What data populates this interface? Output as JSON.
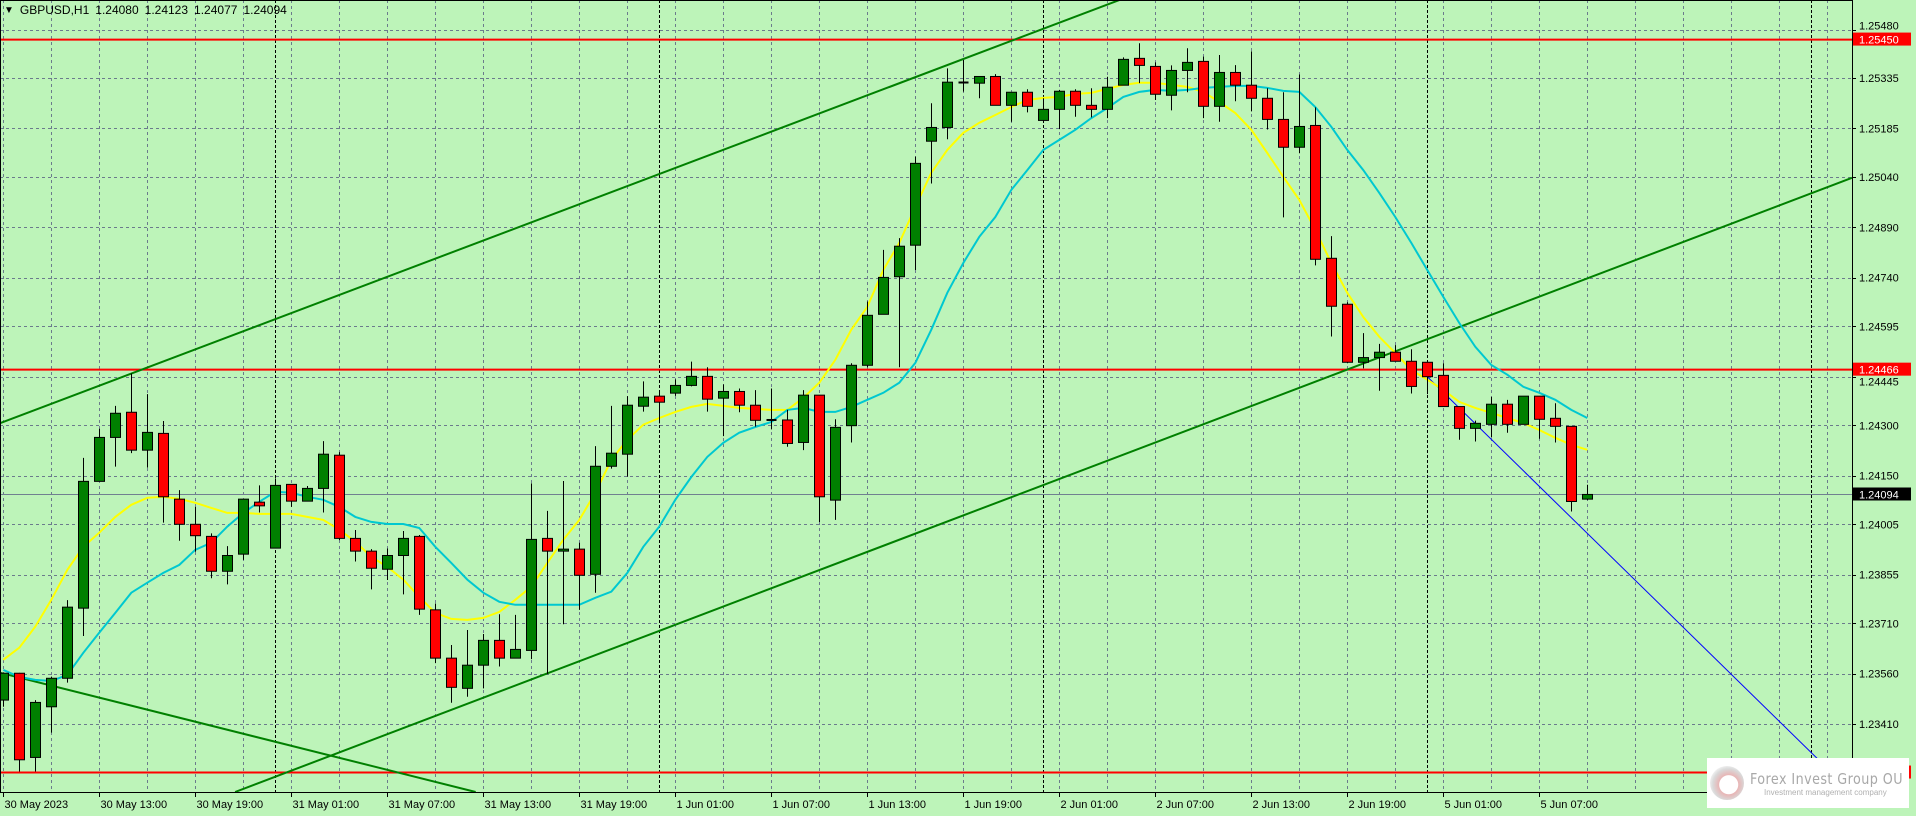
{
  "header": {
    "menu_icon": "triangle-down-icon",
    "symbol": "GBPUSD,H1",
    "open": "1.24080",
    "high": "1.24123",
    "low": "1.24077",
    "close": "1.24094"
  },
  "logo": {
    "name": "Forex Invest Group OU",
    "tagline": "Investment management company"
  },
  "colors": {
    "background": "#bdf4b9",
    "grid": "#6b7b8c",
    "bull": "#008000",
    "bear": "#ff0000",
    "ma_fast": "#ffff00",
    "ma_slow": "#00c8d0",
    "trendline": "#008000",
    "ray": "#0000ff",
    "level": "#ff0000",
    "current_price_bg": "#000000"
  },
  "chart_data": {
    "type": "candlestick",
    "symbol": "GBPUSD",
    "timeframe": "H1",
    "ylim": [
      1.2268,
      1.2559
    ],
    "grid": true,
    "price_ticks": [
      "1.25480",
      "1.25335",
      "1.25185",
      "1.25040",
      "1.24890",
      "1.24740",
      "1.24595",
      "1.24445",
      "1.24300",
      "1.24150",
      "1.24005",
      "1.23855",
      "1.23710",
      "1.23560",
      "1.23410"
    ],
    "time_ticks": [
      {
        "label": "30 May 2023",
        "at": "30 May 07:00"
      },
      {
        "label": "30 May 13:00",
        "at": "30 May 13:00"
      },
      {
        "label": "30 May 19:00",
        "at": "30 May 19:00"
      },
      {
        "label": "31 May 01:00",
        "at": "31 May 01:00"
      },
      {
        "label": "31 May 07:00",
        "at": "31 May 07:00"
      },
      {
        "label": "31 May 13:00",
        "at": "31 May 13:00"
      },
      {
        "label": "31 May 19:00",
        "at": "31 May 19:00"
      },
      {
        "label": "1 Jun 01:00",
        "at": "1 Jun 01:00"
      },
      {
        "label": "1 Jun 07:00",
        "at": "1 Jun 07:00"
      },
      {
        "label": "1 Jun 13:00",
        "at": "1 Jun 13:00"
      },
      {
        "label": "1 Jun 19:00",
        "at": "1 Jun 19:00"
      },
      {
        "label": "2 Jun 01:00",
        "at": "2 Jun 01:00"
      },
      {
        "label": "2 Jun 07:00",
        "at": "2 Jun 07:00"
      },
      {
        "label": "2 Jun 13:00",
        "at": "2 Jun 13:00"
      },
      {
        "label": "2 Jun 19:00",
        "at": "2 Jun 19:00"
      },
      {
        "label": "5 Jun 01:00",
        "at": "5 Jun 01:00"
      },
      {
        "label": "5 Jun 07:00",
        "at": "5 Jun 07:00"
      }
    ],
    "candle_fields": [
      "time",
      "open",
      "high",
      "low",
      "close"
    ],
    "candles": [
      [
        "30 May 07:00",
        1.23481,
        1.23562,
        1.23461,
        1.23561
      ],
      [
        "30 May 08:00",
        1.23561,
        1.23562,
        1.23268,
        1.23303
      ],
      [
        "30 May 09:00",
        1.2331,
        1.23481,
        1.23268,
        1.23474
      ],
      [
        "30 May 10:00",
        1.23461,
        1.23551,
        1.23384,
        1.23546
      ],
      [
        "30 May 11:00",
        1.23546,
        1.23779,
        1.23533,
        1.23758
      ],
      [
        "30 May 12:00",
        1.23755,
        1.24203,
        1.23672,
        1.24133
      ],
      [
        "30 May 13:00",
        1.24133,
        1.2429,
        1.24133,
        1.24264
      ],
      [
        "30 May 14:00",
        1.24264,
        1.24358,
        1.24177,
        1.24336
      ],
      [
        "30 May 15:00",
        1.24339,
        1.24455,
        1.24217,
        1.24226
      ],
      [
        "30 May 16:00",
        1.24226,
        1.24393,
        1.24174,
        1.24279
      ],
      [
        "30 May 17:00",
        1.24276,
        1.24313,
        1.2401,
        1.24087
      ],
      [
        "30 May 18:00",
        1.2408,
        1.24107,
        1.23956,
        1.24005
      ],
      [
        "30 May 19:00",
        1.24005,
        1.24057,
        1.23923,
        1.23971
      ],
      [
        "30 May 20:00",
        1.23969,
        1.23978,
        1.23844,
        1.23865
      ],
      [
        "30 May 21:00",
        1.23865,
        1.2394,
        1.23826,
        1.23912
      ],
      [
        "30 May 22:00",
        1.23916,
        1.2408,
        1.23899,
        1.2408
      ],
      [
        "30 May 23:00",
        1.24071,
        1.24121,
        1.2404,
        1.2406
      ],
      [
        "31 May 00:00",
        1.23934,
        1.24142,
        1.23934,
        1.24121
      ],
      [
        "31 May 01:00",
        1.24124,
        1.24124,
        1.24057,
        1.24074
      ],
      [
        "31 May 02:00",
        1.24074,
        1.24119,
        1.24074,
        1.24112
      ],
      [
        "31 May 03:00",
        1.24112,
        1.24253,
        1.2404,
        1.24214
      ],
      [
        "31 May 04:00",
        1.24211,
        1.2422,
        1.23958,
        1.23963
      ],
      [
        "31 May 05:00",
        1.23963,
        1.23988,
        1.23894,
        1.23925
      ],
      [
        "31 May 06:00",
        1.23925,
        1.23931,
        1.23811,
        1.23874
      ],
      [
        "31 May 07:00",
        1.23871,
        1.23933,
        1.23839,
        1.23912
      ],
      [
        "31 May 08:00",
        1.23912,
        1.23985,
        1.23796,
        1.23963
      ],
      [
        "31 May 09:00",
        1.23969,
        1.23973,
        1.23735,
        1.23752
      ],
      [
        "31 May 10:00",
        1.2375,
        1.23769,
        1.23591,
        1.23606
      ],
      [
        "31 May 11:00",
        1.23606,
        1.23645,
        1.23473,
        1.23519
      ],
      [
        "31 May 12:00",
        1.23516,
        1.2369,
        1.23491,
        1.23585
      ],
      [
        "31 May 13:00",
        1.23585,
        1.23678,
        1.23516,
        1.23659
      ],
      [
        "31 May 14:00",
        1.23659,
        1.23737,
        1.23581,
        1.23606
      ],
      [
        "31 May 15:00",
        1.23606,
        1.23735,
        1.23606,
        1.23632
      ],
      [
        "31 May 16:00",
        1.23629,
        1.24127,
        1.23603,
        1.2396
      ],
      [
        "31 May 17:00",
        1.23963,
        1.24045,
        1.23559,
        1.23925
      ],
      [
        "31 May 18:00",
        1.23925,
        1.24134,
        1.23707,
        1.23931
      ],
      [
        "31 May 19:00",
        1.23931,
        1.2395,
        1.2375,
        1.23853
      ],
      [
        "31 May 20:00",
        1.23856,
        1.24238,
        1.23801,
        1.24178
      ],
      [
        "31 May 21:00",
        1.24178,
        1.24358,
        1.24171,
        1.24217
      ],
      [
        "31 May 22:00",
        1.24214,
        1.24387,
        1.24147,
        1.2436
      ],
      [
        "31 May 23:00",
        1.24357,
        1.24431,
        1.24341,
        1.24384
      ],
      [
        "1 Jun 00:00",
        1.24387,
        1.24405,
        1.24306,
        1.24369
      ],
      [
        "1 Jun 01:00",
        1.24396,
        1.24437,
        1.24388,
        1.24419
      ],
      [
        "1 Jun 02:00",
        1.24419,
        1.2449,
        1.24416,
        1.24446
      ],
      [
        "1 Jun 03:00",
        1.24446,
        1.24473,
        1.24341,
        1.24378
      ],
      [
        "1 Jun 04:00",
        1.24381,
        1.24422,
        1.24268,
        1.24401
      ],
      [
        "1 Jun 05:00",
        1.24401,
        1.2441,
        1.24339,
        1.2436
      ],
      [
        "1 Jun 06:00",
        1.2436,
        1.24405,
        1.24296,
        1.24315
      ],
      [
        "1 Jun 07:00",
        1.24315,
        1.2441,
        1.24288,
        1.24316
      ],
      [
        "1 Jun 08:00",
        1.24316,
        1.24346,
        1.24236,
        1.24246
      ],
      [
        "1 Jun 09:00",
        1.24249,
        1.24405,
        1.24226,
        1.2439
      ],
      [
        "1 Jun 10:00",
        1.2439,
        1.2439,
        1.24012,
        1.24087
      ],
      [
        "1 Jun 11:00",
        1.24077,
        1.24318,
        1.24018,
        1.24294
      ],
      [
        "1 Jun 12:00",
        1.24299,
        1.24485,
        1.24249,
        1.24479
      ],
      [
        "1 Jun 13:00",
        1.24479,
        1.24669,
        1.24473,
        1.24628
      ],
      [
        "1 Jun 14:00",
        1.24631,
        1.24823,
        1.24631,
        1.24741
      ],
      [
        "1 Jun 15:00",
        1.24743,
        1.24858,
        1.24473,
        1.24834
      ],
      [
        "1 Jun 16:00",
        1.24837,
        1.25101,
        1.24763,
        1.25081
      ],
      [
        "1 Jun 17:00",
        1.25147,
        1.2526,
        1.25021,
        1.25188
      ],
      [
        "1 Jun 18:00",
        1.25188,
        1.25364,
        1.25153,
        1.25323
      ],
      [
        "1 Jun 19:00",
        1.25321,
        1.25389,
        1.25295,
        1.25322
      ],
      [
        "1 Jun 20:00",
        1.2532,
        1.2534,
        1.25275,
        1.2534
      ],
      [
        "1 Jun 21:00",
        1.2534,
        1.25347,
        1.25254,
        1.25254
      ],
      [
        "1 Jun 22:00",
        1.25254,
        1.25293,
        1.25205,
        1.25293
      ],
      [
        "1 Jun 23:00",
        1.25293,
        1.25302,
        1.25233,
        1.25251
      ],
      [
        "2 Jun 00:00",
        1.25209,
        1.25275,
        1.25209,
        1.25242
      ],
      [
        "2 Jun 01:00",
        1.25242,
        1.253,
        1.25183,
        1.25296
      ],
      [
        "2 Jun 02:00",
        1.25296,
        1.25302,
        1.2522,
        1.25254
      ],
      [
        "2 Jun 03:00",
        1.25254,
        1.25305,
        1.25218,
        1.25242
      ],
      [
        "2 Jun 04:00",
        1.25242,
        1.25339,
        1.25216,
        1.25308
      ],
      [
        "2 Jun 05:00",
        1.25314,
        1.25397,
        1.25314,
        1.25391
      ],
      [
        "2 Jun 06:00",
        1.25394,
        1.25439,
        1.2532,
        1.25373
      ],
      [
        "2 Jun 07:00",
        1.2537,
        1.25382,
        1.2527,
        1.25287
      ],
      [
        "2 Jun 08:00",
        1.25284,
        1.25373,
        1.25239,
        1.25358
      ],
      [
        "2 Jun 09:00",
        1.25358,
        1.25424,
        1.25293,
        1.25382
      ],
      [
        "2 Jun 10:00",
        1.25385,
        1.25399,
        1.25216,
        1.25251
      ],
      [
        "2 Jun 11:00",
        1.25251,
        1.25404,
        1.25205,
        1.25352
      ],
      [
        "2 Jun 12:00",
        1.25352,
        1.25374,
        1.25266,
        1.25314
      ],
      [
        "2 Jun 13:00",
        1.25314,
        1.25415,
        1.25236,
        1.25275
      ],
      [
        "2 Jun 14:00",
        1.25275,
        1.25305,
        1.25182,
        1.25212
      ],
      [
        "2 Jun 15:00",
        1.25212,
        1.25293,
        1.2492,
        1.25129
      ],
      [
        "2 Jun 16:00",
        1.25129,
        1.25346,
        1.25111,
        1.25191
      ],
      [
        "2 Jun 17:00",
        1.25194,
        1.25248,
        1.24777,
        1.24795
      ],
      [
        "2 Jun 18:00",
        1.24798,
        1.24864,
        1.24565,
        1.24655
      ],
      [
        "2 Jun 19:00",
        1.24661,
        1.24667,
        1.24485,
        1.24488
      ],
      [
        "2 Jun 20:00",
        1.24488,
        1.24575,
        1.2447,
        1.24502
      ],
      [
        "2 Jun 21:00",
        1.24502,
        1.24543,
        1.24403,
        1.24518
      ],
      [
        "2 Jun 22:00",
        1.24518,
        1.24539,
        1.24491,
        1.24491
      ],
      [
        "2 Jun 23:00",
        1.24491,
        1.24527,
        1.24395,
        1.24416
      ],
      [
        "5 Jun 00:00",
        1.24488,
        1.24488,
        1.24393,
        1.24445
      ],
      [
        "5 Jun 01:00",
        1.24449,
        1.24485,
        1.24356,
        1.24356
      ],
      [
        "5 Jun 02:00",
        1.24356,
        1.24356,
        1.24257,
        1.24291
      ],
      [
        "5 Jun 03:00",
        1.24291,
        1.24314,
        1.24252,
        1.24306
      ],
      [
        "5 Jun 04:00",
        1.24303,
        1.24385,
        1.24264,
        1.24363
      ],
      [
        "5 Jun 05:00",
        1.24363,
        1.24376,
        1.24278,
        1.24303
      ],
      [
        "5 Jun 06:00",
        1.24303,
        1.24387,
        1.24303,
        1.24387
      ],
      [
        "5 Jun 07:00",
        1.24387,
        1.24387,
        1.2426,
        1.24318
      ],
      [
        "5 Jun 08:00",
        1.24321,
        1.24366,
        1.24249,
        1.24297
      ],
      [
        "5 Jun 09:00",
        1.24297,
        1.24297,
        1.24043,
        1.24073
      ],
      [
        "5 Jun 10:00",
        1.2408,
        1.24123,
        1.24077,
        1.24094
      ]
    ],
    "ma_fast": [
      1.23601,
      1.23637,
      1.237,
      1.2378,
      1.23869,
      1.23938,
      1.2398,
      1.24027,
      1.24063,
      1.24084,
      1.24087,
      1.24081,
      1.24069,
      1.24054,
      1.24039,
      1.24039,
      1.24036,
      1.24036,
      1.24036,
      1.24027,
      1.24018,
      1.23989,
      1.23953,
      1.23908,
      1.23878,
      1.2384,
      1.23789,
      1.23741,
      1.23723,
      1.2372,
      1.23726,
      1.23744,
      1.2378,
      1.23819,
      1.2389,
      1.23959,
      1.24018,
      1.24099,
      1.24197,
      1.24257,
      1.24302,
      1.24322,
      1.2434,
      1.24355,
      1.24364,
      1.24358,
      1.24352,
      1.24349,
      1.24346,
      1.24346,
      1.24382,
      1.24427,
      1.24495,
      1.24585,
      1.24653,
      1.24763,
      1.24844,
      1.24951,
      1.25053,
      1.25121,
      1.25172,
      1.25202,
      1.25225,
      1.25249,
      1.2527,
      1.25276,
      1.25279,
      1.25288,
      1.25291,
      1.25303,
      1.25315,
      1.25321,
      1.25321,
      1.25315,
      1.25309,
      1.25294,
      1.25264,
      1.25231,
      1.25181,
      1.25112,
      1.25041,
      1.24972,
      1.24883,
      1.24784,
      1.24695,
      1.24623,
      1.24564,
      1.24516,
      1.24465,
      1.24436,
      1.24406,
      1.2437,
      1.24352,
      1.24337,
      1.24322,
      1.24307,
      1.24286,
      1.24263,
      1.24242,
      1.24227
    ],
    "ma_slow": [
      1.23571,
      1.2355,
      1.23541,
      1.23538,
      1.23556,
      1.23622,
      1.23682,
      1.23741,
      1.23801,
      1.23831,
      1.2386,
      1.23884,
      1.23929,
      1.2395,
      1.23998,
      1.24039,
      1.24072,
      1.24102,
      1.24099,
      1.24087,
      1.24078,
      1.24057,
      1.24027,
      1.24012,
      1.24006,
      1.24006,
      1.23994,
      1.23938,
      1.2389,
      1.2384,
      1.23801,
      1.23774,
      1.23765,
      1.23765,
      1.23765,
      1.23765,
      1.23765,
      1.23786,
      1.23804,
      1.2386,
      1.23938,
      1.23998,
      1.24078,
      1.24146,
      1.24206,
      1.24248,
      1.24278,
      1.24295,
      1.2431,
      1.24346,
      1.24352,
      1.2434,
      1.2434,
      1.24355,
      1.24376,
      1.24397,
      1.24427,
      1.24486,
      1.24585,
      1.24695,
      1.24784,
      1.24862,
      1.24921,
      1.25002,
      1.25061,
      1.25121,
      1.25151,
      1.25181,
      1.25216,
      1.25246,
      1.25279,
      1.25294,
      1.253,
      1.25297,
      1.253,
      1.25306,
      1.25309,
      1.25312,
      1.25312,
      1.25306,
      1.25297,
      1.25294,
      1.25249,
      1.2519,
      1.25121,
      1.25061,
      1.24993,
      1.24921,
      1.24844,
      1.24763,
      1.24683,
      1.24605,
      1.24534,
      1.2448,
      1.24451,
      1.24415,
      1.24397,
      1.24376,
      1.24346,
      1.24322
    ],
    "horizontal_levels": [
      {
        "price": "1.25450",
        "labeled": true
      },
      {
        "price": "1.24466",
        "labeled": true
      },
      {
        "price": "1.23265",
        "labeled": false
      }
    ],
    "current_price": "1.24094",
    "trendlines": [
      {
        "kind": "channel-upper",
        "color": "#008000",
        "p1": [
          "30 May 07:00",
          1.2431
        ],
        "p2": [
          "1 Jun 19:00",
          1.25392
        ],
        "extend": "both"
      },
      {
        "kind": "channel-lower",
        "color": "#008000",
        "p1": [
          "31 May 13:00",
          1.23488
        ],
        "p2": [
          "5 Jun 01:00",
          1.24575
        ],
        "extend": "both"
      },
      {
        "kind": "descending",
        "color": "#008000",
        "p1": [
          "30 May 07:00",
          1.2356
        ],
        "p2": [
          "31 May 07:00",
          1.23273
        ],
        "extend": "both"
      },
      {
        "kind": "ray",
        "color": "#0000ff",
        "p1": [
          "5 Jun 00:00",
          1.24445
        ],
        "p2": [
          "5 Jun 10:00",
          1.23978
        ],
        "extend": "right"
      }
    ],
    "period_separators": [
      "31 May 00:00",
      "1 Jun 00:00",
      "2 Jun 00:00",
      "5 Jun 00:00",
      "6 Jun 00:00"
    ]
  }
}
